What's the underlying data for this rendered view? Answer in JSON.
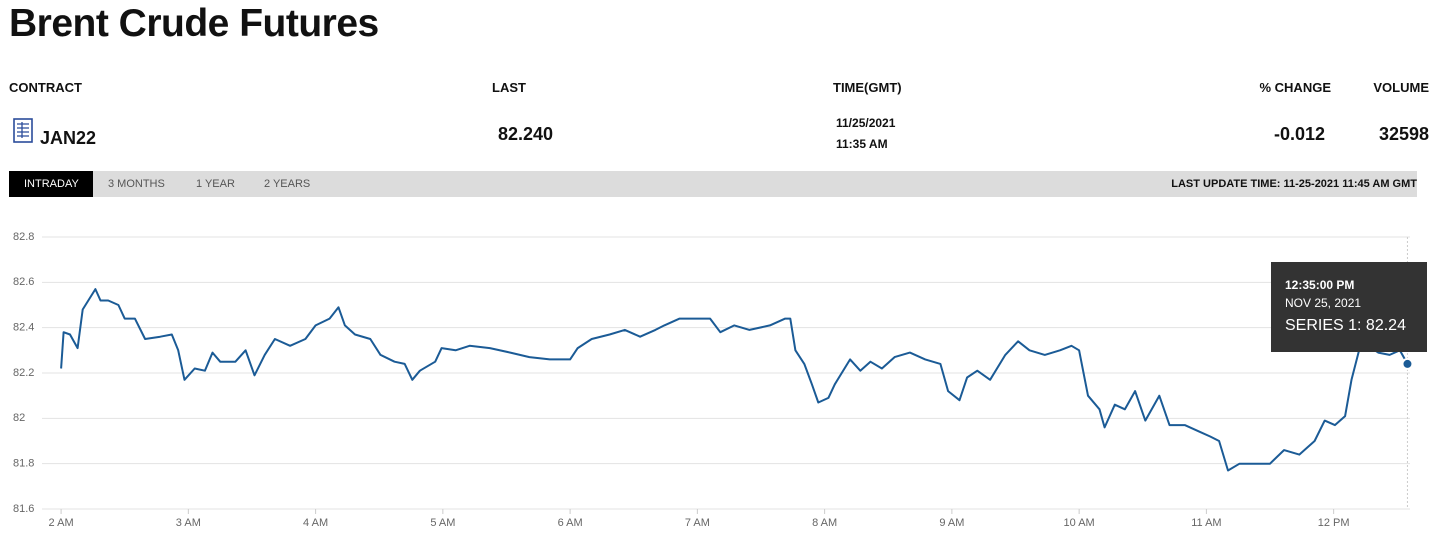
{
  "header": {
    "title": "Brent Crude Futures",
    "columns": [
      "CONTRACT",
      "LAST",
      "TIME(GMT)",
      "% CHANGE",
      "VOLUME"
    ],
    "row": {
      "contract": "JAN22",
      "last": "82.240",
      "date": "11/25/2021",
      "time": "11:35 AM",
      "change": "-0.012",
      "volume": "32598"
    }
  },
  "tabs": [
    "INTRADAY",
    "3 MONTHS",
    "1 YEAR",
    "2 YEARS"
  ],
  "last_update": "LAST UPDATE TIME: 11-25-2021 11:45 AM GMT",
  "chart_data": {
    "type": "line",
    "color": "#1b5b96",
    "grid": true,
    "xlim": [
      1.85,
      12.6
    ],
    "ylim": [
      81.6,
      82.8
    ],
    "yticks": [
      81.6,
      81.8,
      82,
      82.2,
      82.4,
      82.6,
      82.8
    ],
    "xticks": [
      {
        "value": 2,
        "label": "2 AM"
      },
      {
        "value": 3,
        "label": "3 AM"
      },
      {
        "value": 4,
        "label": "4 AM"
      },
      {
        "value": 5,
        "label": "5 AM"
      },
      {
        "value": 6,
        "label": "6 AM"
      },
      {
        "value": 7,
        "label": "7 AM"
      },
      {
        "value": 8,
        "label": "8 AM"
      },
      {
        "value": 9,
        "label": "9 AM"
      },
      {
        "value": 10,
        "label": "10 AM"
      },
      {
        "value": 11,
        "label": "11 AM"
      },
      {
        "value": 12,
        "label": "12 PM"
      }
    ],
    "series": [
      {
        "name": "SERIES 1",
        "x": [
          2.0,
          2.02,
          2.07,
          2.13,
          2.17,
          2.27,
          2.31,
          2.37,
          2.45,
          2.5,
          2.58,
          2.66,
          2.78,
          2.87,
          2.92,
          2.97,
          3.05,
          3.13,
          3.19,
          3.25,
          3.37,
          3.45,
          3.52,
          3.6,
          3.68,
          3.8,
          3.92,
          4.0,
          4.11,
          4.18,
          4.23,
          4.31,
          4.43,
          4.51,
          4.62,
          4.7,
          4.76,
          4.82,
          4.94,
          4.99,
          5.1,
          5.21,
          5.37,
          5.53,
          5.68,
          5.84,
          6.0,
          6.06,
          6.17,
          6.31,
          6.43,
          6.55,
          6.67,
          6.74,
          6.86,
          6.98,
          7.1,
          7.18,
          7.29,
          7.41,
          7.57,
          7.69,
          7.73,
          7.77,
          7.84,
          7.9,
          7.95,
          8.03,
          8.08,
          8.2,
          8.28,
          8.36,
          8.45,
          8.55,
          8.67,
          8.79,
          8.91,
          8.97,
          9.06,
          9.12,
          9.2,
          9.3,
          9.42,
          9.52,
          9.61,
          9.73,
          9.85,
          9.94,
          10.0,
          10.07,
          10.16,
          10.2,
          10.28,
          10.36,
          10.44,
          10.52,
          10.63,
          10.71,
          10.83,
          10.95,
          11.03,
          11.1,
          11.17,
          11.26,
          11.38,
          11.5,
          11.61,
          11.73,
          11.85,
          11.93,
          12.01,
          12.09,
          12.14,
          12.2,
          12.27,
          12.35,
          12.44,
          12.52,
          12.58
        ],
        "values": [
          82.22,
          82.38,
          82.37,
          82.31,
          82.48,
          82.57,
          82.52,
          82.52,
          82.5,
          82.44,
          82.44,
          82.35,
          82.36,
          82.37,
          82.3,
          82.17,
          82.22,
          82.21,
          82.29,
          82.25,
          82.25,
          82.3,
          82.19,
          82.28,
          82.35,
          82.32,
          82.35,
          82.41,
          82.44,
          82.49,
          82.41,
          82.37,
          82.35,
          82.28,
          82.25,
          82.24,
          82.17,
          82.21,
          82.25,
          82.31,
          82.3,
          82.32,
          82.31,
          82.29,
          82.27,
          82.26,
          82.26,
          82.31,
          82.35,
          82.37,
          82.39,
          82.36,
          82.39,
          82.41,
          82.44,
          82.44,
          82.44,
          82.38,
          82.41,
          82.39,
          82.41,
          82.44,
          82.44,
          82.3,
          82.24,
          82.15,
          82.07,
          82.09,
          82.15,
          82.26,
          82.21,
          82.25,
          82.22,
          82.27,
          82.29,
          82.26,
          82.24,
          82.12,
          82.08,
          82.18,
          82.21,
          82.17,
          82.28,
          82.34,
          82.3,
          82.28,
          82.3,
          82.32,
          82.3,
          82.1,
          82.04,
          81.96,
          82.06,
          82.04,
          82.12,
          81.99,
          82.1,
          81.97,
          81.97,
          81.94,
          81.92,
          81.9,
          81.77,
          81.8,
          81.8,
          81.8,
          81.86,
          81.84,
          81.9,
          81.99,
          81.97,
          82.01,
          82.17,
          82.3,
          82.32,
          82.29,
          82.28,
          82.3,
          82.24
        ]
      }
    ],
    "tooltip": {
      "time": "12:35:00 PM",
      "date": "NOV 25, 2021",
      "text": "SERIES 1: 82.24"
    }
  }
}
